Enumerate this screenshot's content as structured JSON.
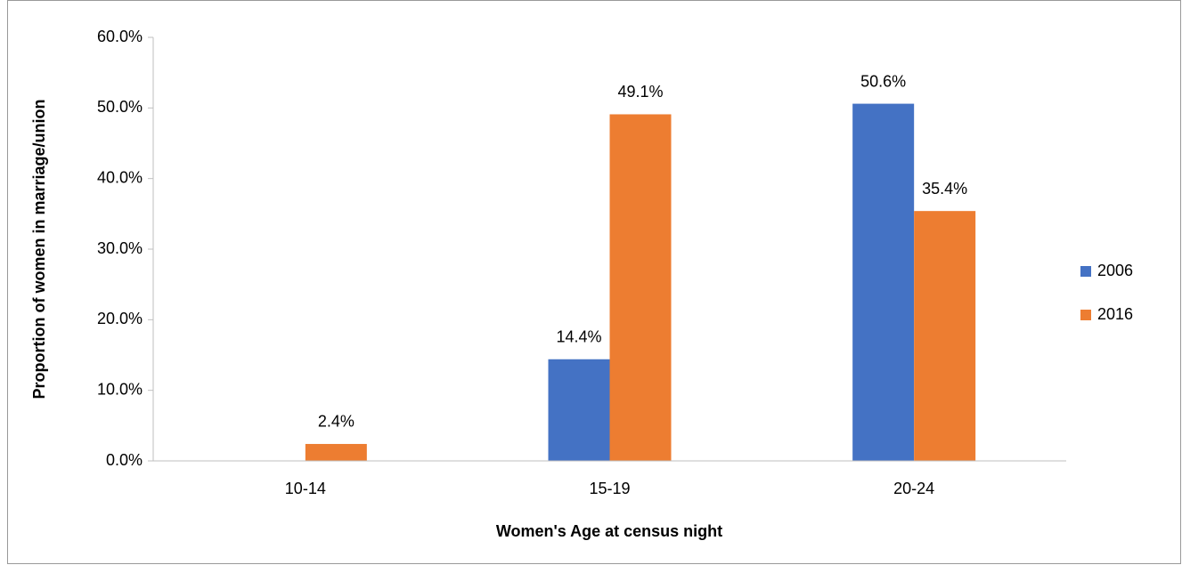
{
  "chart_data": {
    "type": "bar",
    "x_label": "Women's Age at census night",
    "y_label": "Proportion of women in marriage/union",
    "categories": [
      "10-14",
      "15-19",
      "20-24"
    ],
    "series": [
      {
        "name": "2006",
        "color": "#4472c4",
        "values": [
          null,
          14.4,
          50.6
        ],
        "value_labels": [
          null,
          "14.4%",
          "50.6%"
        ]
      },
      {
        "name": "2016",
        "color": "#ed7d31",
        "values": [
          2.4,
          49.1,
          35.4
        ],
        "value_labels": [
          "2.4%",
          "49.1%",
          "35.4%"
        ]
      }
    ],
    "ylim": [
      0,
      60
    ],
    "yticks": [
      {
        "value": 0,
        "label": "0.0%"
      },
      {
        "value": 10,
        "label": "10.0%"
      },
      {
        "value": 20,
        "label": "20.0%"
      },
      {
        "value": 30,
        "label": "30.0%"
      },
      {
        "value": 40,
        "label": "40.0%"
      },
      {
        "value": 50,
        "label": "50.0%"
      },
      {
        "value": 60,
        "label": "60.0%"
      }
    ],
    "grid": false,
    "legend": "right"
  }
}
